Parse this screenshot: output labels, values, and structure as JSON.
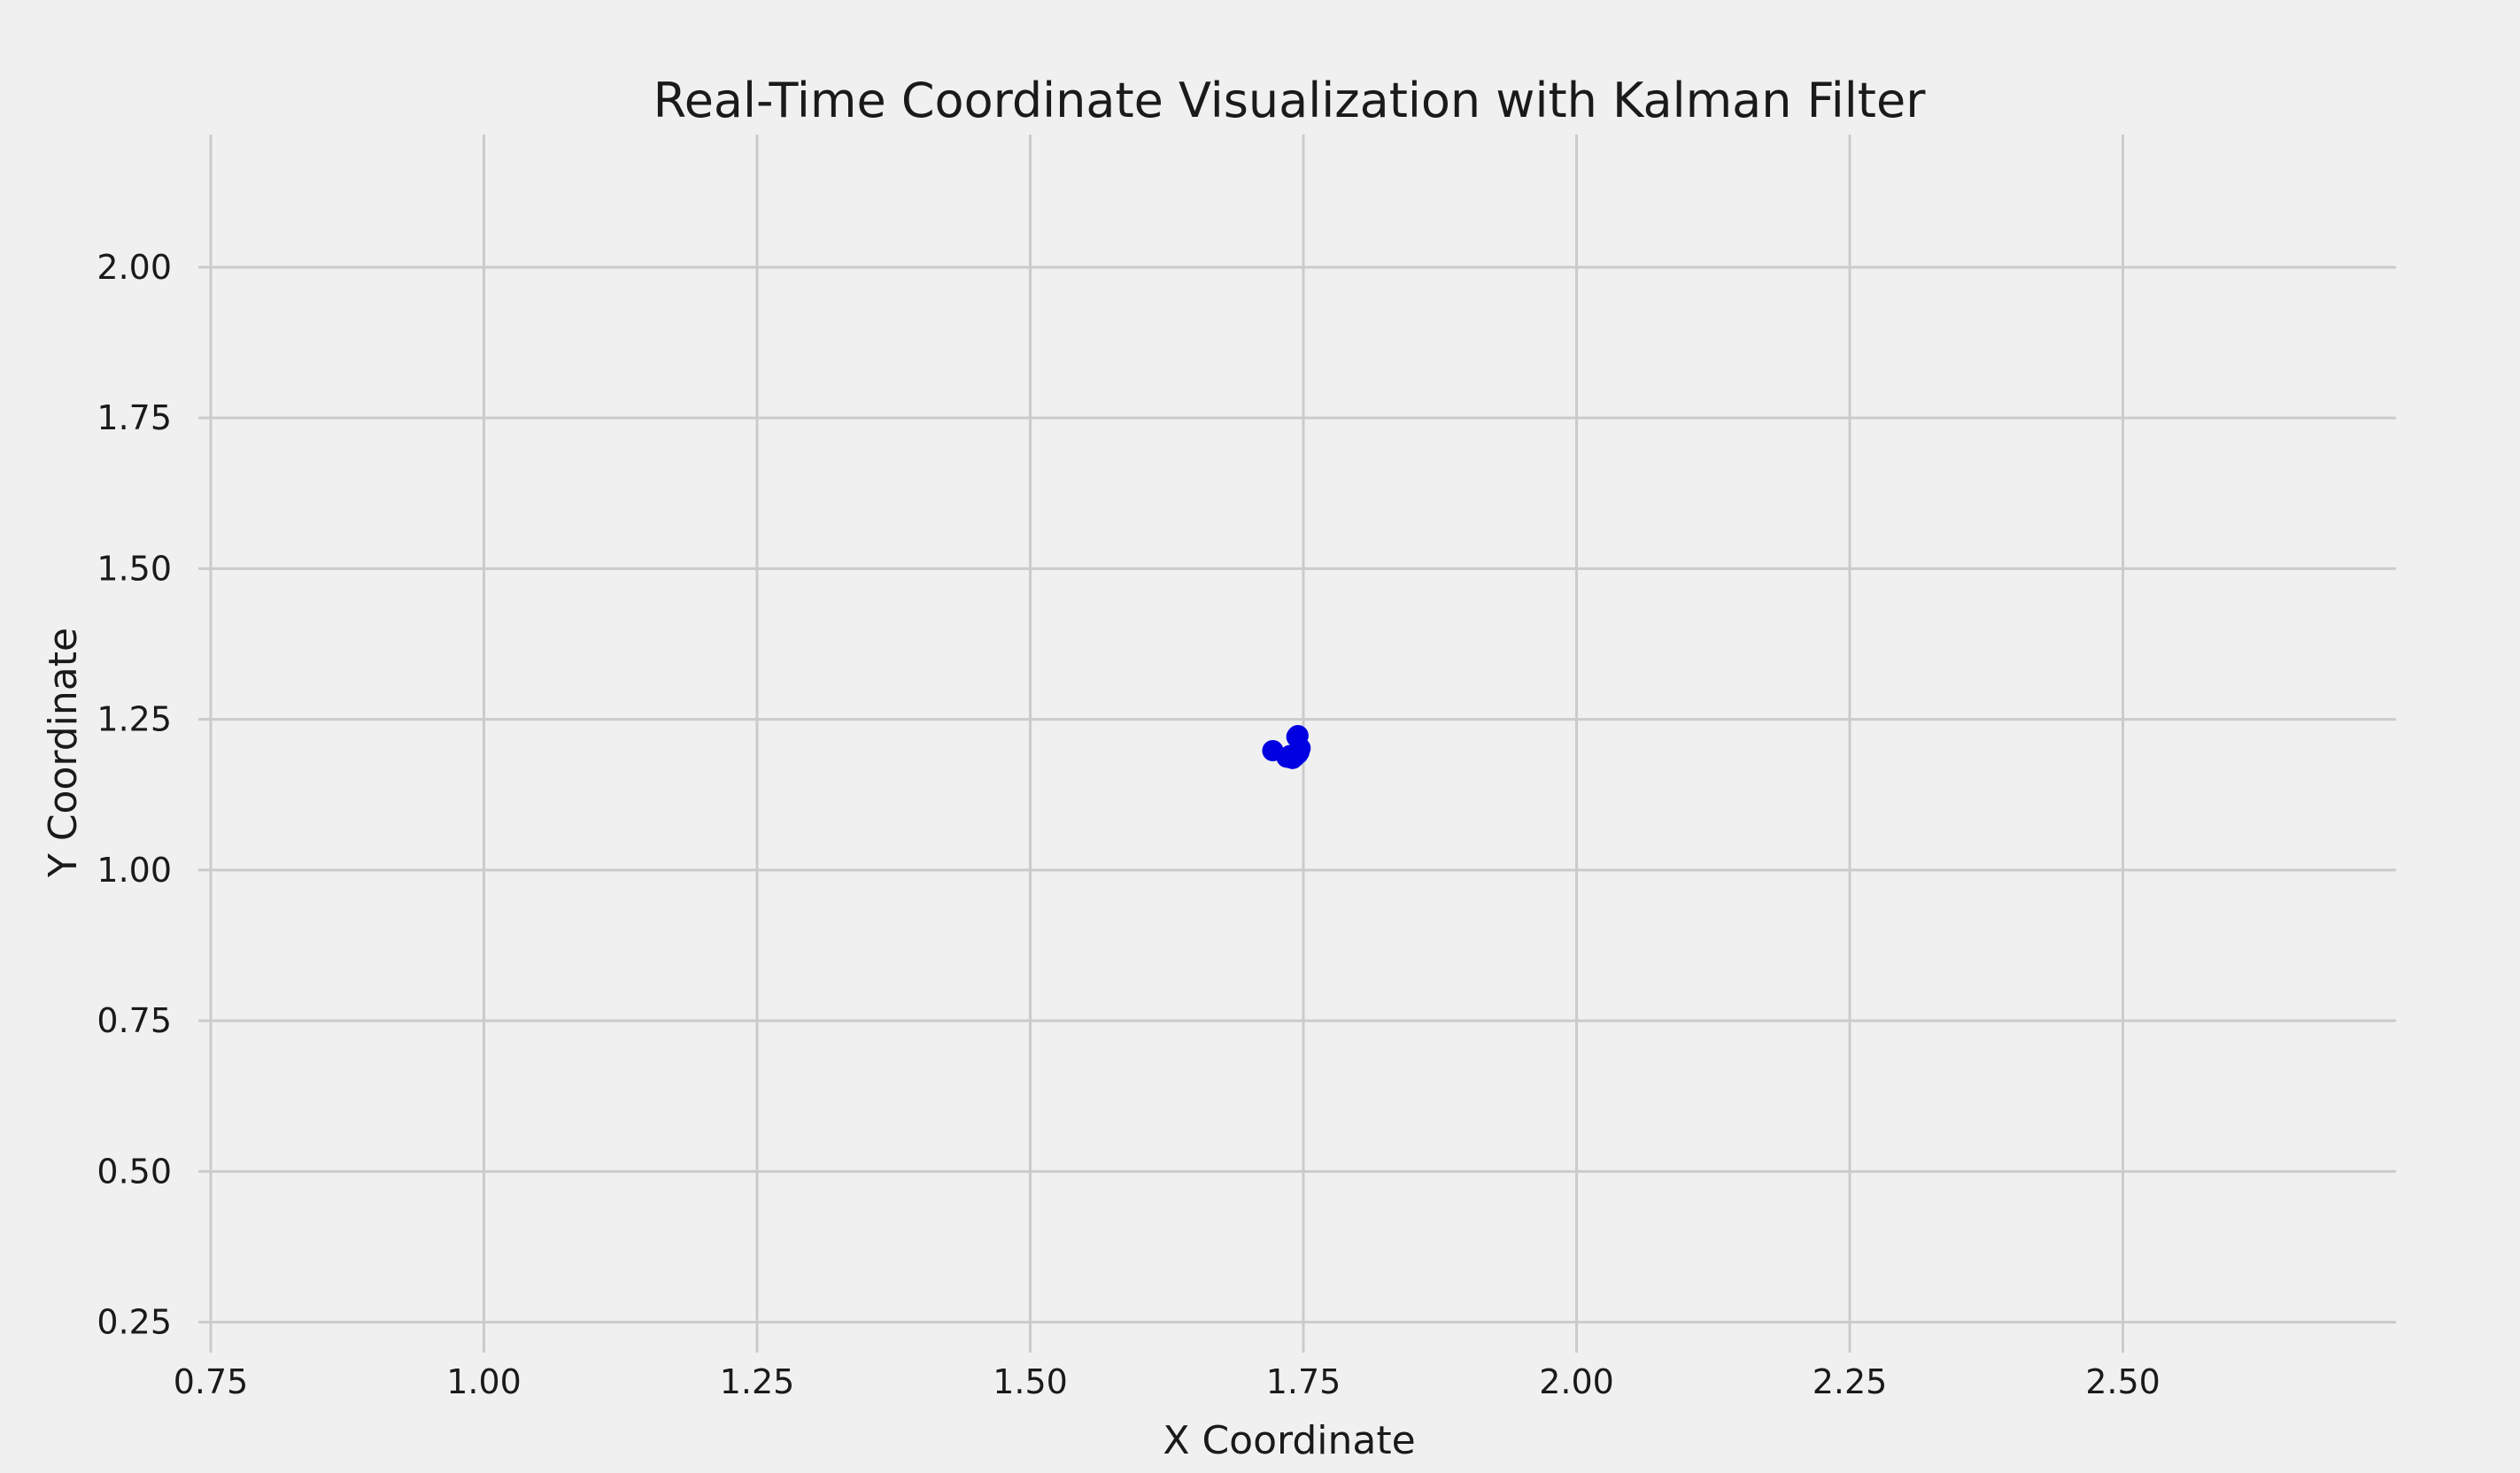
{
  "chart_data": {
    "type": "scatter",
    "title": "Real-Time Coordinate Visualization with Kalman Filter",
    "xlabel": "X Coordinate",
    "ylabel": "Y Coordinate",
    "xlim": [
      0.75,
      2.75
    ],
    "ylim": [
      0.22,
      2.22
    ],
    "xticks": [
      "0.75",
      "1.00",
      "1.25",
      "1.50",
      "1.75",
      "2.00",
      "2.25",
      "2.50"
    ],
    "yticks": [
      "0.25",
      "0.50",
      "0.75",
      "1.00",
      "1.25",
      "1.50",
      "1.75",
      "2.00"
    ],
    "grid": true,
    "background": "#f0f0f0",
    "grid_color": "#cbcbcb",
    "series": [
      {
        "color": "#0000e0",
        "points": [
          {
            "x": 1.722,
            "y": 1.198
          },
          {
            "x": 1.735,
            "y": 1.187
          },
          {
            "x": 1.738,
            "y": 1.19
          },
          {
            "x": 1.74,
            "y": 1.185
          },
          {
            "x": 1.742,
            "y": 1.188
          },
          {
            "x": 1.744,
            "y": 1.221
          },
          {
            "x": 1.745,
            "y": 1.223
          },
          {
            "x": 1.746,
            "y": 1.196
          },
          {
            "x": 1.747,
            "y": 1.202
          },
          {
            "x": 1.745,
            "y": 1.193
          }
        ]
      }
    ]
  }
}
